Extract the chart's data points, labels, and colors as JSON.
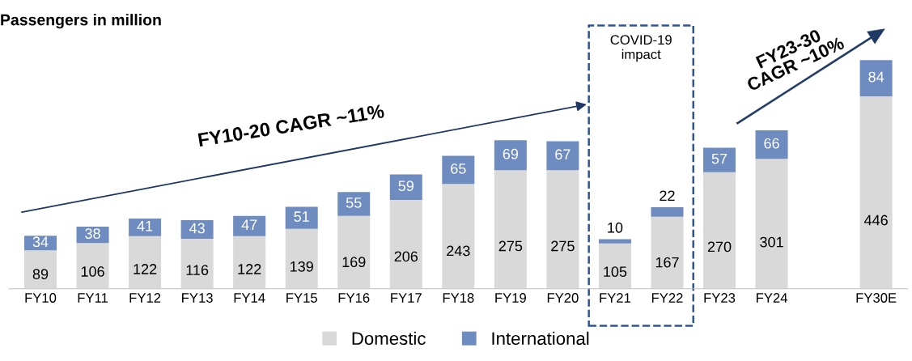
{
  "chart_data": {
    "type": "bar",
    "stacked": true,
    "title": "Passengers in million",
    "categories": [
      "FY10",
      "FY11",
      "FY12",
      "FY13",
      "FY14",
      "FY15",
      "FY16",
      "FY17",
      "FY18",
      "FY19",
      "FY20",
      "FY21",
      "FY22",
      "FY23",
      "FY24",
      null,
      "FY30E"
    ],
    "series": [
      {
        "name": "Domestic",
        "color": "#d9d9d9",
        "values": [
          89,
          106,
          122,
          116,
          122,
          139,
          169,
          206,
          243,
          275,
          275,
          105,
          167,
          270,
          301,
          null,
          446
        ]
      },
      {
        "name": "International",
        "color": "#6f8cc0",
        "values": [
          34,
          38,
          41,
          43,
          47,
          51,
          55,
          59,
          65,
          69,
          67,
          10,
          22,
          57,
          66,
          null,
          84
        ]
      }
    ],
    "data_labels": true,
    "legend": "bottom",
    "tick_labels": "x",
    "annotations": [
      "FY10-20 CAGR ~11%",
      "FY23-30\nCAGR ~10%",
      "COVID-19\nimpact"
    ]
  }
}
